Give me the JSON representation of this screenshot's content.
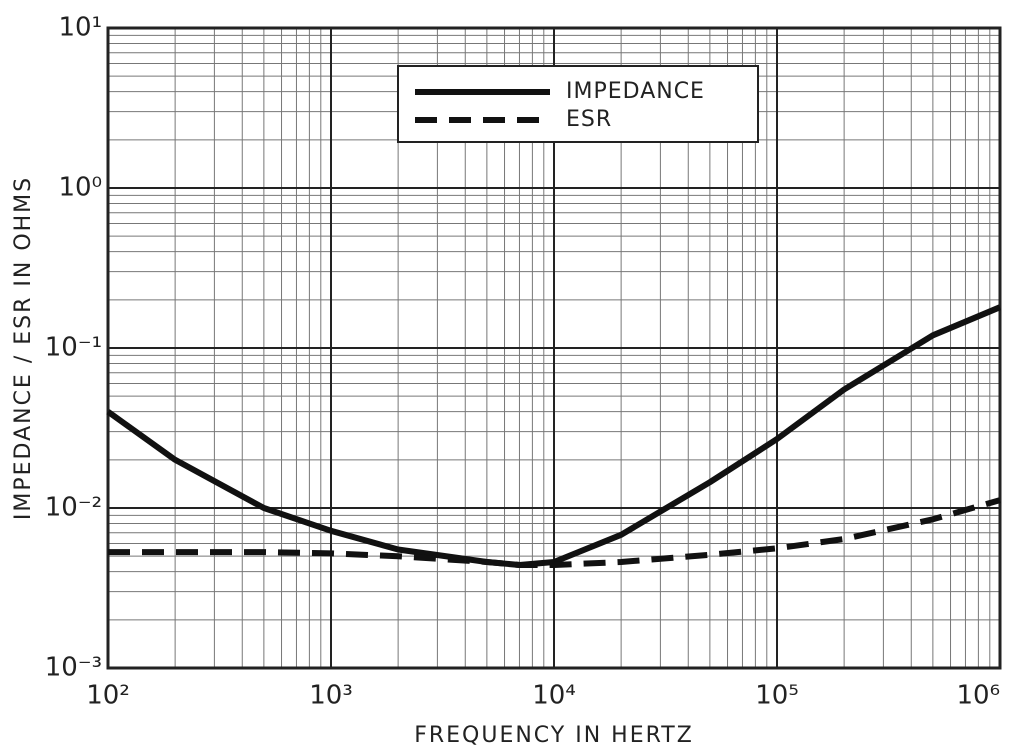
{
  "chart_data": {
    "type": "line",
    "x_label": "FREQUENCY IN HERTZ",
    "y_label": "IMPEDANCE / ESR IN OHMS",
    "x": [
      100,
      200,
      500,
      1000,
      2000,
      5000,
      7000,
      10000,
      20000,
      50000,
      100000,
      200000,
      500000,
      1000000
    ],
    "series": [
      {
        "name": "IMPEDANCE",
        "color": "#111111",
        "style": "solid",
        "values": [
          0.04,
          0.02,
          0.01,
          0.0072,
          0.0055,
          0.0046,
          0.0044,
          0.0046,
          0.0068,
          0.0145,
          0.027,
          0.055,
          0.12,
          0.18
        ]
      },
      {
        "name": "ESR",
        "color": "#111111",
        "style": "dashed",
        "values": [
          0.0053,
          0.0053,
          0.0053,
          0.0052,
          0.005,
          0.0046,
          0.0044,
          0.0044,
          0.0046,
          0.0051,
          0.0056,
          0.0064,
          0.0085,
          0.0112
        ]
      }
    ],
    "xscale": "log",
    "yscale": "log",
    "xlim": [
      100,
      1000000
    ],
    "ylim": [
      0.001,
      10
    ],
    "xticks": [
      {
        "value": 100,
        "label": "10²"
      },
      {
        "value": 1000,
        "label": "10³"
      },
      {
        "value": 10000,
        "label": "10⁴"
      },
      {
        "value": 100000,
        "label": "10⁵"
      },
      {
        "value": 1000000,
        "label": "10⁶"
      }
    ],
    "yticks": [
      {
        "value": 0.001,
        "label": "10⁻³"
      },
      {
        "value": 0.01,
        "label": "10⁻²"
      },
      {
        "value": 0.1,
        "label": "10⁻¹"
      },
      {
        "value": 1,
        "label": "10⁰"
      },
      {
        "value": 10,
        "label": "10¹"
      }
    ],
    "grid": true,
    "minor_grid": true,
    "legend": "top"
  }
}
